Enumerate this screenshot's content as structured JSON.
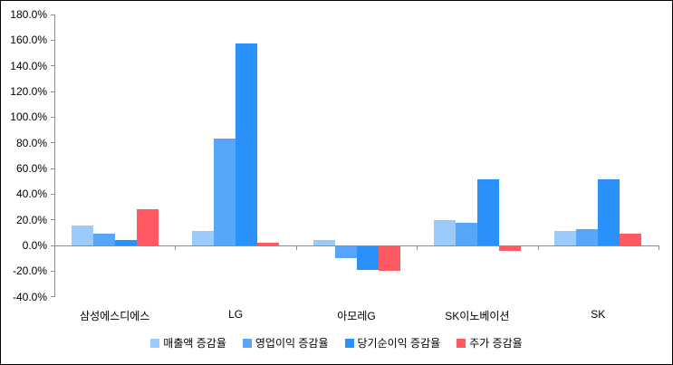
{
  "chart_data": {
    "type": "bar",
    "categories": [
      "삼성에스디에스",
      "LG",
      "아모레G",
      "SK이노베이션",
      "SK"
    ],
    "series": [
      {
        "name": "매출액 증감율",
        "color": "#9CCAFB",
        "values": [
          15.5,
          11.5,
          4,
          20,
          11
        ]
      },
      {
        "name": "영업이익 증감율",
        "color": "#57A6FA",
        "values": [
          9,
          83.5,
          -10,
          18,
          12.5
        ]
      },
      {
        "name": "당기순이익 증감율",
        "color": "#2B91FA",
        "values": [
          4.5,
          157.5,
          -19,
          51.5,
          51.5
        ]
      },
      {
        "name": "주가 증감율",
        "color": "#FF5A62",
        "values": [
          28,
          2,
          -20,
          -4,
          9
        ]
      }
    ],
    "title": "",
    "xlabel": "",
    "ylabel": "",
    "ylim": [
      -40,
      180
    ],
    "ytick_step": 20,
    "ytick_labels": [
      "180.0%",
      "160.0%",
      "140.0%",
      "120.0%",
      "100.0%",
      "80.0%",
      "60.0%",
      "40.0%",
      "20.0%",
      "0.0%",
      "-20.0%",
      "-40.0%"
    ],
    "grid": false,
    "legend_position": "bottom"
  },
  "colors": {
    "axis": "#8C8C8C",
    "text": "#000000",
    "border": "#000000",
    "background": "#FFFFFF"
  }
}
